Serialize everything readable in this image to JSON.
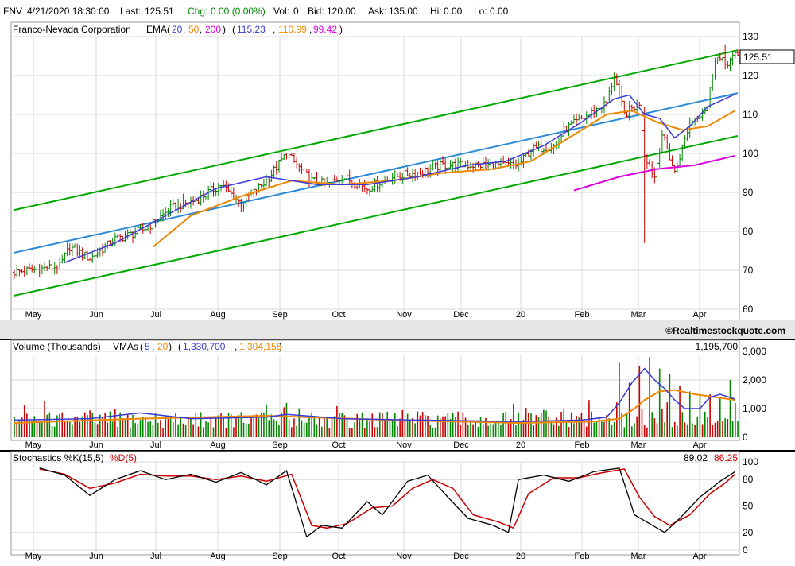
{
  "header": {
    "symbol": "FNV",
    "datetime": "4/21/2020 18:30:00",
    "last_label": "Last:",
    "last": "125.51",
    "chg_label": "Chg:",
    "chg": "0.00 (0.00%)",
    "vol_label": "Vol:",
    "vol": "0",
    "bid_label": "Bid:",
    "bid": "120.00",
    "ask_label": "Ask:",
    "ask": "135.00",
    "hi_label": "Hi:",
    "hi": "0.00",
    "lo_label": "Lo:",
    "lo": "0.00"
  },
  "price_panel": {
    "title": "Franco-Nevada Corporation",
    "ema_label": "EMA",
    "ema_periods": [
      "20",
      "50",
      "200"
    ],
    "ema_values": [
      "115.23",
      "110.99",
      "99.42"
    ],
    "last_badge": "125.51",
    "watermark": "©Realtimestockquote.com"
  },
  "volume_panel": {
    "title": "Volume (Thousands)",
    "vma_label": "VMAs",
    "vma_periods": [
      "5",
      "20"
    ],
    "vma_values": [
      "1,330,700",
      "1,304,155"
    ],
    "current": "1,195,700"
  },
  "stoch_panel": {
    "title": "Stochastics %K(15,5)",
    "d_label": "%D(5)",
    "k_value": "89.02",
    "d_value": "86.25"
  },
  "colors": {
    "up": "#008800",
    "down": "#cc0000",
    "channel": "#00aa00",
    "trend": "#2a8ad8",
    "ema20": "#3a3ad8",
    "ema50": "#ee8800",
    "ema200": "#dd00dd",
    "vma5": "#3a3ad8",
    "vma20": "#ee8800",
    "k": "#000000",
    "d": "#cc0000",
    "stoch_mid": "#3a3ad8"
  },
  "chart_data": [
    {
      "type": "ohlc",
      "title": "Franco-Nevada Corporation",
      "x_labels": [
        "May",
        "Jun",
        "Jul",
        "Aug",
        "Sep",
        "Oct",
        "Nov",
        "Dec",
        "20",
        "Feb",
        "Mar",
        "Apr"
      ],
      "y_ticks": [
        60,
        70,
        80,
        90,
        100,
        110,
        120,
        130
      ],
      "ylim": [
        60,
        130
      ],
      "close_path": [
        [
          0,
          69.5
        ],
        [
          18,
          71
        ],
        [
          22,
          76
        ],
        [
          30,
          73
        ],
        [
          40,
          78
        ],
        [
          50,
          80
        ],
        [
          55,
          82
        ],
        [
          62,
          86
        ],
        [
          72,
          88
        ],
        [
          82,
          92
        ],
        [
          90,
          87
        ],
        [
          100,
          93
        ],
        [
          108,
          100
        ],
        [
          112,
          97
        ],
        [
          118,
          93
        ],
        [
          124,
          92
        ],
        [
          130,
          94
        ],
        [
          140,
          91
        ],
        [
          150,
          94
        ],
        [
          160,
          95
        ],
        [
          170,
          97
        ],
        [
          180,
          97
        ],
        [
          190,
          97
        ],
        [
          200,
          97
        ],
        [
          205,
          101
        ],
        [
          215,
          102
        ],
        [
          218,
          106
        ],
        [
          228,
          110
        ],
        [
          235,
          113
        ],
        [
          238,
          120
        ],
        [
          242,
          110
        ],
        [
          248,
          113
        ],
        [
          250,
          100
        ],
        [
          254,
          94
        ],
        [
          257,
          105
        ],
        [
          262,
          95
        ],
        [
          268,
          108
        ],
        [
          275,
          112
        ],
        [
          278,
          125
        ],
        [
          282,
          123
        ],
        [
          286,
          125
        ]
      ],
      "lows_notable": [
        [
          250,
          77
        ],
        [
          262,
          95
        ]
      ],
      "highs_notable": [
        [
          250,
          112
        ],
        [
          282,
          128
        ]
      ],
      "ema20_path": [
        [
          20,
          72
        ],
        [
          40,
          77
        ],
        [
          60,
          84
        ],
        [
          80,
          91
        ],
        [
          100,
          94
        ],
        [
          120,
          92
        ],
        [
          140,
          92
        ],
        [
          160,
          94
        ],
        [
          180,
          97
        ],
        [
          195,
          98
        ],
        [
          210,
          102
        ],
        [
          225,
          108
        ],
        [
          238,
          114
        ],
        [
          244,
          115
        ],
        [
          250,
          110
        ],
        [
          256,
          109
        ],
        [
          262,
          104
        ],
        [
          268,
          107
        ],
        [
          275,
          112
        ],
        [
          286,
          115.23
        ]
      ],
      "ema50_path": [
        [
          55,
          76
        ],
        [
          70,
          84
        ],
        [
          90,
          89
        ],
        [
          110,
          93
        ],
        [
          130,
          92
        ],
        [
          150,
          93
        ],
        [
          170,
          95
        ],
        [
          190,
          96
        ],
        [
          205,
          98
        ],
        [
          220,
          104
        ],
        [
          235,
          110
        ],
        [
          245,
          111
        ],
        [
          255,
          108
        ],
        [
          265,
          106
        ],
        [
          275,
          107
        ],
        [
          286,
          110.99
        ]
      ],
      "ema200_path": [
        [
          222,
          90.5
        ],
        [
          240,
          94
        ],
        [
          255,
          96
        ],
        [
          270,
          97
        ],
        [
          286,
          99.42
        ]
      ],
      "channel_upper": [
        [
          0,
          85.5
        ],
        [
          287,
          126.5
        ]
      ],
      "channel_lower": [
        [
          0,
          63.5
        ],
        [
          287,
          104.5
        ]
      ],
      "trendline": [
        [
          0,
          74.5
        ],
        [
          287,
          115.5
        ]
      ]
    },
    {
      "type": "bar",
      "title": "Volume (Thousands)",
      "x_labels": [
        "May",
        "Jun",
        "Jul",
        "Aug",
        "Sep",
        "Oct",
        "Nov",
        "Dec",
        "20",
        "Feb",
        "Mar",
        "Apr"
      ],
      "y_ticks": [
        0,
        1000,
        2000,
        3000
      ],
      "ylim": [
        0,
        3000
      ],
      "baseline_range": [
        300,
        900
      ],
      "notable_bars": [
        [
          12,
          1250
        ],
        [
          40,
          980
        ],
        [
          100,
          1150
        ],
        [
          108,
          1200
        ],
        [
          160,
          900
        ],
        [
          228,
          1300
        ],
        [
          240,
          2600
        ],
        [
          244,
          1900
        ],
        [
          248,
          2500
        ],
        [
          252,
          2800
        ],
        [
          256,
          2400
        ],
        [
          260,
          2200
        ],
        [
          264,
          1800
        ],
        [
          268,
          1600
        ],
        [
          272,
          1450
        ],
        [
          276,
          1500
        ],
        [
          280,
          1400
        ],
        [
          284,
          2000
        ],
        [
          286,
          1195.7
        ]
      ],
      "vma5_path": [
        [
          0,
          600
        ],
        [
          30,
          650
        ],
        [
          50,
          850
        ],
        [
          70,
          650
        ],
        [
          100,
          700
        ],
        [
          108,
          800
        ],
        [
          130,
          650
        ],
        [
          160,
          600
        ],
        [
          200,
          550
        ],
        [
          225,
          600
        ],
        [
          235,
          700
        ],
        [
          240,
          1200
        ],
        [
          245,
          1900
        ],
        [
          250,
          2400
        ],
        [
          254,
          2000
        ],
        [
          258,
          1700
        ],
        [
          262,
          1300
        ],
        [
          266,
          1000
        ],
        [
          272,
          1000
        ],
        [
          276,
          1400
        ],
        [
          280,
          1500
        ],
        [
          286,
          1330.7
        ]
      ],
      "vma20_path": [
        [
          0,
          500
        ],
        [
          50,
          650
        ],
        [
          100,
          750
        ],
        [
          150,
          600
        ],
        [
          200,
          500
        ],
        [
          230,
          550
        ],
        [
          240,
          650
        ],
        [
          246,
          1000
        ],
        [
          250,
          1300
        ],
        [
          256,
          1600
        ],
        [
          262,
          1650
        ],
        [
          270,
          1500
        ],
        [
          278,
          1400
        ],
        [
          286,
          1304.155
        ]
      ]
    },
    {
      "type": "line",
      "title": "Stochastics %K(15,5)",
      "x_labels": [
        "May",
        "Jun",
        "Jul",
        "Aug",
        "Sep",
        "Oct",
        "Nov",
        "Dec",
        "20",
        "Feb",
        "Mar",
        "Apr"
      ],
      "y_ticks": [
        0,
        20,
        50,
        80,
        100
      ],
      "ylim": [
        0,
        100
      ],
      "reference_line": 50,
      "k_path": [
        [
          10,
          93
        ],
        [
          20,
          85
        ],
        [
          30,
          62
        ],
        [
          40,
          80
        ],
        [
          50,
          90
        ],
        [
          60,
          80
        ],
        [
          70,
          86
        ],
        [
          80,
          77
        ],
        [
          90,
          88
        ],
        [
          100,
          74
        ],
        [
          108,
          90
        ],
        [
          116,
          15
        ],
        [
          122,
          28
        ],
        [
          130,
          25
        ],
        [
          140,
          55
        ],
        [
          146,
          40
        ],
        [
          156,
          78
        ],
        [
          164,
          85
        ],
        [
          172,
          60
        ],
        [
          180,
          36
        ],
        [
          190,
          28
        ],
        [
          196,
          20
        ],
        [
          200,
          80
        ],
        [
          210,
          85
        ],
        [
          220,
          78
        ],
        [
          230,
          89
        ],
        [
          240,
          93
        ],
        [
          246,
          40
        ],
        [
          252,
          30
        ],
        [
          258,
          20
        ],
        [
          264,
          36
        ],
        [
          272,
          60
        ],
        [
          280,
          78
        ],
        [
          286,
          89.02
        ]
      ],
      "d_path": [
        [
          10,
          92
        ],
        [
          20,
          86
        ],
        [
          30,
          70
        ],
        [
          40,
          76
        ],
        [
          50,
          86
        ],
        [
          60,
          84
        ],
        [
          70,
          84
        ],
        [
          80,
          80
        ],
        [
          90,
          84
        ],
        [
          100,
          78
        ],
        [
          110,
          86
        ],
        [
          118,
          28
        ],
        [
          124,
          25
        ],
        [
          132,
          30
        ],
        [
          142,
          48
        ],
        [
          150,
          50
        ],
        [
          158,
          70
        ],
        [
          166,
          80
        ],
        [
          174,
          70
        ],
        [
          182,
          40
        ],
        [
          192,
          32
        ],
        [
          198,
          25
        ],
        [
          204,
          64
        ],
        [
          214,
          82
        ],
        [
          224,
          82
        ],
        [
          232,
          87
        ],
        [
          242,
          92
        ],
        [
          248,
          60
        ],
        [
          254,
          38
        ],
        [
          260,
          28
        ],
        [
          268,
          40
        ],
        [
          276,
          64
        ],
        [
          282,
          76
        ],
        [
          286,
          86.25
        ]
      ]
    }
  ]
}
